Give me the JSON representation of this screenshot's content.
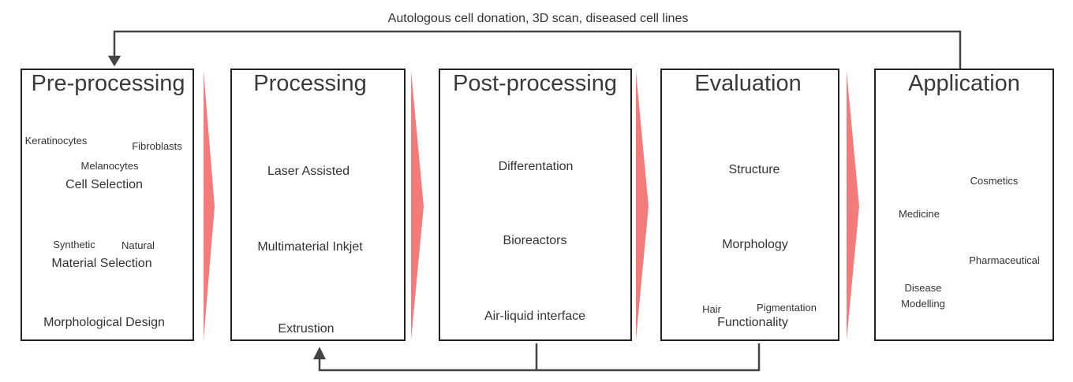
{
  "feedback_top": "Autologous cell donation, 3D scan, diseased cell lines",
  "arrow_color": "#f47b7b",
  "stages": [
    {
      "title": "Pre-processing",
      "labels": {
        "keratinocytes": "Keratinocytes",
        "melanocytes": "Melanocytes",
        "fibroblasts": "Fibroblasts",
        "cell_selection": "Cell Selection",
        "synthetic": "Synthetic",
        "natural": "Natural",
        "material_selection": "Material Selection",
        "morphological_design": "Morphological Design"
      }
    },
    {
      "title": "Processing",
      "labels": {
        "laser": "Laser Assisted",
        "inkjet": "Multimaterial Inkjet",
        "extrusion": "Extrustion"
      }
    },
    {
      "title": "Post-processing",
      "labels": {
        "differentiation": "Differentation",
        "bioreactors": "Bioreactors",
        "ali": "Air-liquid interface"
      }
    },
    {
      "title": "Evaluation",
      "labels": {
        "structure": "Structure",
        "morphology": "Morphology",
        "hair": "Hair",
        "pigmentation": "Pigmentation",
        "functionality": "Functionality"
      }
    },
    {
      "title": "Application",
      "labels": {
        "medicine": "Medicine",
        "cosmetics": "Cosmetics",
        "pharmaceutical": "Pharmaceutical",
        "disease_1": "Disease",
        "disease_2": "Modelling"
      }
    }
  ]
}
